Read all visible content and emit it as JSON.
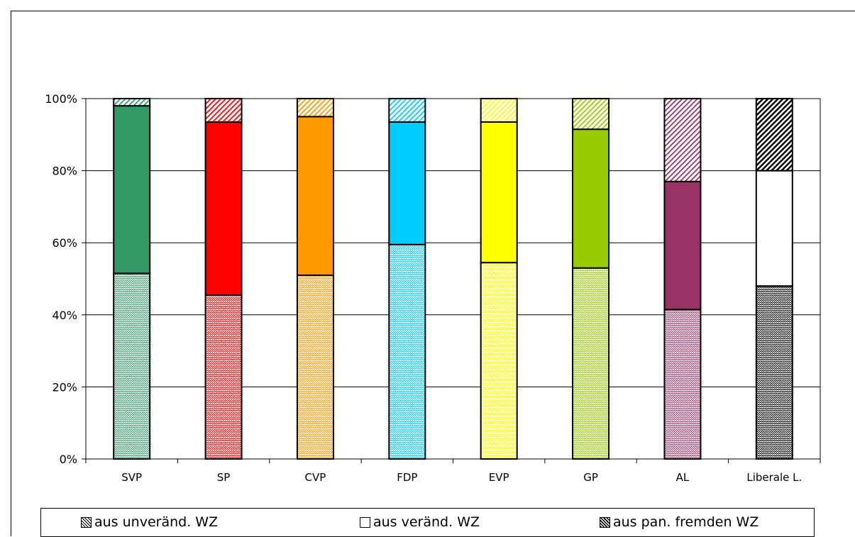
{
  "chart_data": {
    "type": "bar",
    "stacked": "percent",
    "categories": [
      "SVP",
      "SP",
      "CVP",
      "FDP",
      "EVP",
      "GP",
      "AL",
      "Liberale L."
    ],
    "series": [
      {
        "name": "aus unveränd. WZ",
        "values": [
          51.5,
          45.5,
          51,
          59.5,
          54.5,
          53,
          41.5,
          48
        ]
      },
      {
        "name": "aus veränd. WZ",
        "values": [
          46.5,
          48,
          44,
          34,
          39,
          38.5,
          35.5,
          32
        ]
      },
      {
        "name": "aus pan. fremden WZ",
        "values": [
          2,
          6.5,
          5,
          6.5,
          6.5,
          8.5,
          23,
          20
        ]
      }
    ],
    "y_ticks": [
      "0%",
      "20%",
      "40%",
      "60%",
      "80%",
      "100%"
    ],
    "ylim": [
      0,
      100
    ],
    "grid": true,
    "legend_position": "bottom",
    "bar_colors": [
      "#339966",
      "#ff0000",
      "#ff9900",
      "#00ccff",
      "#ffff00",
      "#99cc00",
      "#993366",
      "#ffffff"
    ],
    "hatch_color_bottom_black_for_last": "#000000"
  }
}
